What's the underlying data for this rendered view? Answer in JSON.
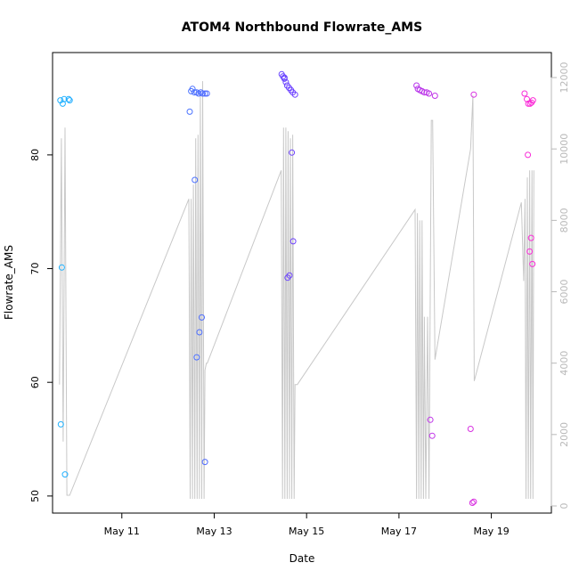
{
  "chart_data": {
    "type": "scatter",
    "title": "ATOM4 Northbound Flowrate_AMS",
    "xlabel": "Date",
    "ylabel": "Flowrate_AMS",
    "x_ticks": [
      "May 11",
      "May 13",
      "May 15",
      "May 17",
      "May 19"
    ],
    "x_tick_days": [
      11,
      13,
      15,
      17,
      19
    ],
    "xlim_days": [
      9.5,
      20.3
    ],
    "ylim": [
      48.5,
      89
    ],
    "y_ticks": [
      50,
      60,
      70,
      80
    ],
    "y2lim": [
      -200,
      12700
    ],
    "y2_ticks": [
      0,
      2000,
      4000,
      6000,
      8000,
      10000,
      12000
    ],
    "grid": false,
    "colors": {
      "axis": "#000000",
      "secondary_line": "#c8c8c8",
      "secondary_axis": "#b9b9b9",
      "point_start": "#1eb4ff",
      "point_mid": "#6f3fff",
      "point_end": "#ff2bd6"
    },
    "points": [
      {
        "x": 9.67,
        "y": 84.8
      },
      {
        "x": 9.72,
        "y": 84.5
      },
      {
        "x": 9.75,
        "y": 84.9
      },
      {
        "x": 9.85,
        "y": 84.9
      },
      {
        "x": 9.87,
        "y": 84.8
      },
      {
        "x": 9.7,
        "y": 70.1
      },
      {
        "x": 9.68,
        "y": 56.3
      },
      {
        "x": 9.77,
        "y": 51.9
      },
      {
        "x": 12.47,
        "y": 83.8
      },
      {
        "x": 12.5,
        "y": 85.6
      },
      {
        "x": 12.53,
        "y": 85.8
      },
      {
        "x": 12.57,
        "y": 85.5
      },
      {
        "x": 12.62,
        "y": 85.5
      },
      {
        "x": 12.66,
        "y": 85.4
      },
      {
        "x": 12.71,
        "y": 85.5
      },
      {
        "x": 12.75,
        "y": 85.4
      },
      {
        "x": 12.8,
        "y": 85.4
      },
      {
        "x": 12.84,
        "y": 85.4
      },
      {
        "x": 12.58,
        "y": 77.8
      },
      {
        "x": 12.73,
        "y": 65.7
      },
      {
        "x": 12.68,
        "y": 64.4
      },
      {
        "x": 12.62,
        "y": 62.2
      },
      {
        "x": 12.8,
        "y": 53.0
      },
      {
        "x": 14.46,
        "y": 87.1
      },
      {
        "x": 14.49,
        "y": 86.9
      },
      {
        "x": 14.52,
        "y": 86.7
      },
      {
        "x": 14.55,
        "y": 86.4
      },
      {
        "x": 14.58,
        "y": 86.1
      },
      {
        "x": 14.62,
        "y": 85.9
      },
      {
        "x": 14.66,
        "y": 85.7
      },
      {
        "x": 14.7,
        "y": 85.5
      },
      {
        "x": 14.75,
        "y": 85.3
      },
      {
        "x": 14.52,
        "y": 86.8
      },
      {
        "x": 14.68,
        "y": 80.2
      },
      {
        "x": 14.71,
        "y": 72.4
      },
      {
        "x": 14.63,
        "y": 69.4
      },
      {
        "x": 14.59,
        "y": 69.2
      },
      {
        "x": 17.38,
        "y": 86.1
      },
      {
        "x": 17.41,
        "y": 85.8
      },
      {
        "x": 17.45,
        "y": 85.7
      },
      {
        "x": 17.5,
        "y": 85.6
      },
      {
        "x": 17.55,
        "y": 85.5
      },
      {
        "x": 17.6,
        "y": 85.5
      },
      {
        "x": 17.65,
        "y": 85.4
      },
      {
        "x": 17.78,
        "y": 85.2
      },
      {
        "x": 17.68,
        "y": 56.7
      },
      {
        "x": 17.72,
        "y": 55.3
      },
      {
        "x": 18.62,
        "y": 85.3
      },
      {
        "x": 18.55,
        "y": 55.9
      },
      {
        "x": 18.59,
        "y": 49.4
      },
      {
        "x": 18.62,
        "y": 49.5
      },
      {
        "x": 19.72,
        "y": 85.4
      },
      {
        "x": 19.77,
        "y": 84.9
      },
      {
        "x": 19.8,
        "y": 84.5
      },
      {
        "x": 19.84,
        "y": 84.5
      },
      {
        "x": 19.87,
        "y": 84.6
      },
      {
        "x": 19.9,
        "y": 84.8
      },
      {
        "x": 19.79,
        "y": 80.0
      },
      {
        "x": 19.86,
        "y": 72.7
      },
      {
        "x": 19.83,
        "y": 71.5
      },
      {
        "x": 19.89,
        "y": 70.4
      }
    ],
    "secondary_series": {
      "axis": "right",
      "x": [
        9.65,
        9.69,
        9.73,
        9.77,
        9.81,
        9.87,
        12.45,
        12.48,
        12.5,
        12.53,
        12.55,
        12.58,
        12.6,
        12.63,
        12.65,
        12.68,
        12.7,
        12.73,
        12.75,
        12.78,
        12.8,
        12.83,
        12.85,
        14.45,
        14.48,
        14.5,
        14.53,
        14.55,
        14.58,
        14.6,
        14.63,
        14.65,
        14.68,
        14.7,
        14.73,
        14.75,
        14.8,
        17.35,
        17.38,
        17.4,
        17.43,
        17.45,
        17.48,
        17.5,
        17.53,
        17.55,
        17.58,
        17.62,
        17.65,
        17.7,
        17.73,
        17.78,
        18.55,
        18.6,
        18.63,
        19.65,
        19.7,
        19.73,
        19.75,
        19.78,
        19.8,
        19.83,
        19.85,
        19.88,
        19.9,
        19.92
      ],
      "values": [
        3400,
        10300,
        1800,
        10600,
        300,
        300,
        8600,
        200,
        8600,
        200,
        9000,
        200,
        10300,
        200,
        10400,
        200,
        11500,
        200,
        11900,
        200,
        3800,
        4000,
        4000,
        9400,
        200,
        10600,
        200,
        10600,
        200,
        10500,
        200,
        10300,
        200,
        10400,
        200,
        3400,
        3400,
        8300,
        200,
        8200,
        200,
        8000,
        200,
        8000,
        200,
        5300,
        200,
        5300,
        200,
        10800,
        10800,
        4100,
        10000,
        11500,
        3500,
        8500,
        6300,
        8600,
        200,
        9200,
        200,
        9400,
        200,
        9400,
        200,
        9400
      ]
    }
  }
}
